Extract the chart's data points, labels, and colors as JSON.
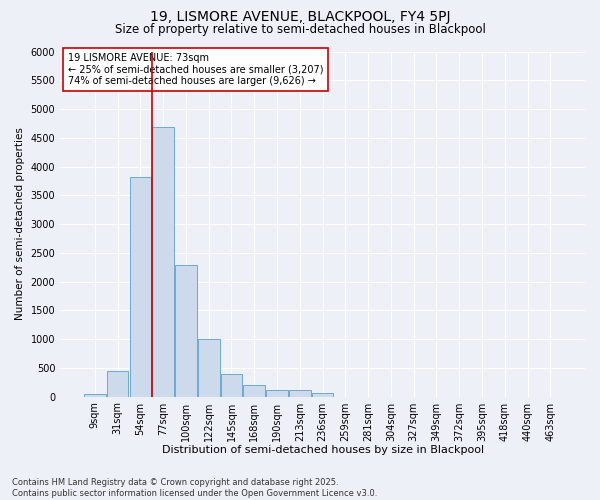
{
  "title1": "19, LISMORE AVENUE, BLACKPOOL, FY4 5PJ",
  "title2": "Size of property relative to semi-detached houses in Blackpool",
  "xlabel": "Distribution of semi-detached houses by size in Blackpool",
  "ylabel": "Number of semi-detached properties",
  "categories": [
    "9sqm",
    "31sqm",
    "54sqm",
    "77sqm",
    "100sqm",
    "122sqm",
    "145sqm",
    "168sqm",
    "190sqm",
    "213sqm",
    "236sqm",
    "259sqm",
    "281sqm",
    "304sqm",
    "327sqm",
    "349sqm",
    "372sqm",
    "395sqm",
    "418sqm",
    "440sqm",
    "463sqm"
  ],
  "values": [
    50,
    450,
    3820,
    4680,
    2280,
    1000,
    400,
    210,
    120,
    110,
    70,
    0,
    0,
    0,
    0,
    0,
    0,
    0,
    0,
    0,
    0
  ],
  "bar_color": "#ccdaeb",
  "bar_edge_color": "#6aaad4",
  "red_line_index": 3,
  "red_line_color": "#cc0000",
  "annotation_text": "19 LISMORE AVENUE: 73sqm\n← 25% of semi-detached houses are smaller (3,207)\n74% of semi-detached houses are larger (9,626) →",
  "annotation_box_color": "#ffffff",
  "annotation_box_edge": "#cc0000",
  "ylim": [
    0,
    6000
  ],
  "yticks": [
    0,
    500,
    1000,
    1500,
    2000,
    2500,
    3000,
    3500,
    4000,
    4500,
    5000,
    5500,
    6000
  ],
  "background_color": "#edf1f7",
  "grid_color": "#ffffff",
  "footer": "Contains HM Land Registry data © Crown copyright and database right 2025.\nContains public sector information licensed under the Open Government Licence v3.0.",
  "title1_fontsize": 10,
  "title2_fontsize": 8.5,
  "xlabel_fontsize": 8,
  "ylabel_fontsize": 7.5,
  "tick_fontsize": 7,
  "annotation_fontsize": 7,
  "footer_fontsize": 6
}
